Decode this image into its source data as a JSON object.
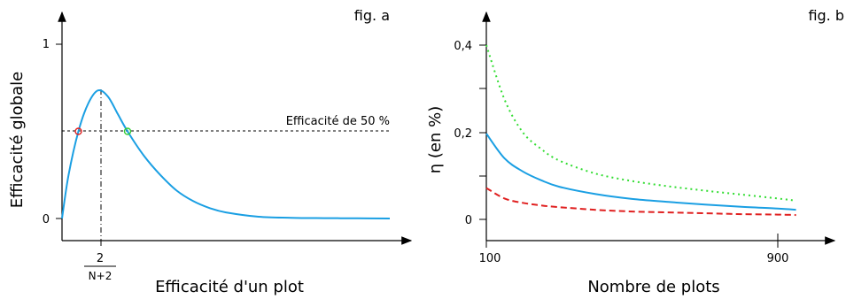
{
  "chart_data": [
    {
      "type": "line",
      "tag": "fig. a",
      "xlabel": "Efficacité d'un plot",
      "ylabel": "Efficacité globale",
      "x_marker": {
        "numerator": "2",
        "denominator": "N+2"
      },
      "y_ticks": [
        "0",
        "1"
      ],
      "ylim": [
        0,
        1
      ],
      "grid": false,
      "reference_line": {
        "label": "Efficacité de 50 %",
        "y": 0.5
      },
      "series": [
        {
          "color": "#1a9fe3",
          "x": [
            0,
            0.02,
            0.05,
            0.08,
            0.11,
            0.14,
            0.17,
            0.2,
            0.25,
            0.3,
            0.35,
            0.4,
            0.45,
            0.5,
            0.6,
            0.7,
            0.8,
            0.9,
            1.0
          ],
          "y": [
            0,
            0.25,
            0.5,
            0.66,
            0.735,
            0.7,
            0.6,
            0.5,
            0.36,
            0.25,
            0.16,
            0.1,
            0.06,
            0.035,
            0.01,
            0.004,
            0.002,
            0.001,
            0.0
          ]
        }
      ],
      "crossings": [
        {
          "x": 0.05,
          "y": 0.5,
          "color": "#e02020"
        },
        {
          "x": 0.2,
          "y": 0.5,
          "color": "#33cc33"
        }
      ]
    },
    {
      "type": "line",
      "tag": "fig. b",
      "xlabel": "Nombre de plots",
      "ylabel": "η (en %)",
      "x_ticks": [
        "100",
        "900"
      ],
      "y_ticks": [
        "0",
        "0,2",
        "0,4"
      ],
      "xlim": [
        100,
        950
      ],
      "ylim": [
        0,
        0.45
      ],
      "grid": false,
      "series": [
        {
          "color": "#33dd33",
          "style": "dotted",
          "x": [
            100,
            150,
            200,
            250,
            300,
            400,
            500,
            600,
            700,
            800,
            900,
            950
          ],
          "y": [
            0.4,
            0.275,
            0.2,
            0.162,
            0.135,
            0.105,
            0.088,
            0.076,
            0.066,
            0.057,
            0.048,
            0.043
          ]
        },
        {
          "color": "#1a9fe3",
          "style": "solid",
          "x": [
            100,
            150,
            200,
            250,
            300,
            400,
            500,
            600,
            700,
            800,
            900,
            950
          ],
          "y": [
            0.197,
            0.14,
            0.11,
            0.09,
            0.075,
            0.058,
            0.047,
            0.04,
            0.034,
            0.029,
            0.025,
            0.022
          ]
        },
        {
          "color": "#e02020",
          "style": "dashed",
          "x": [
            100,
            150,
            200,
            250,
            300,
            400,
            500,
            600,
            700,
            800,
            900,
            950
          ],
          "y": [
            0.072,
            0.048,
            0.038,
            0.032,
            0.028,
            0.022,
            0.018,
            0.016,
            0.014,
            0.012,
            0.011,
            0.01
          ]
        }
      ]
    }
  ]
}
